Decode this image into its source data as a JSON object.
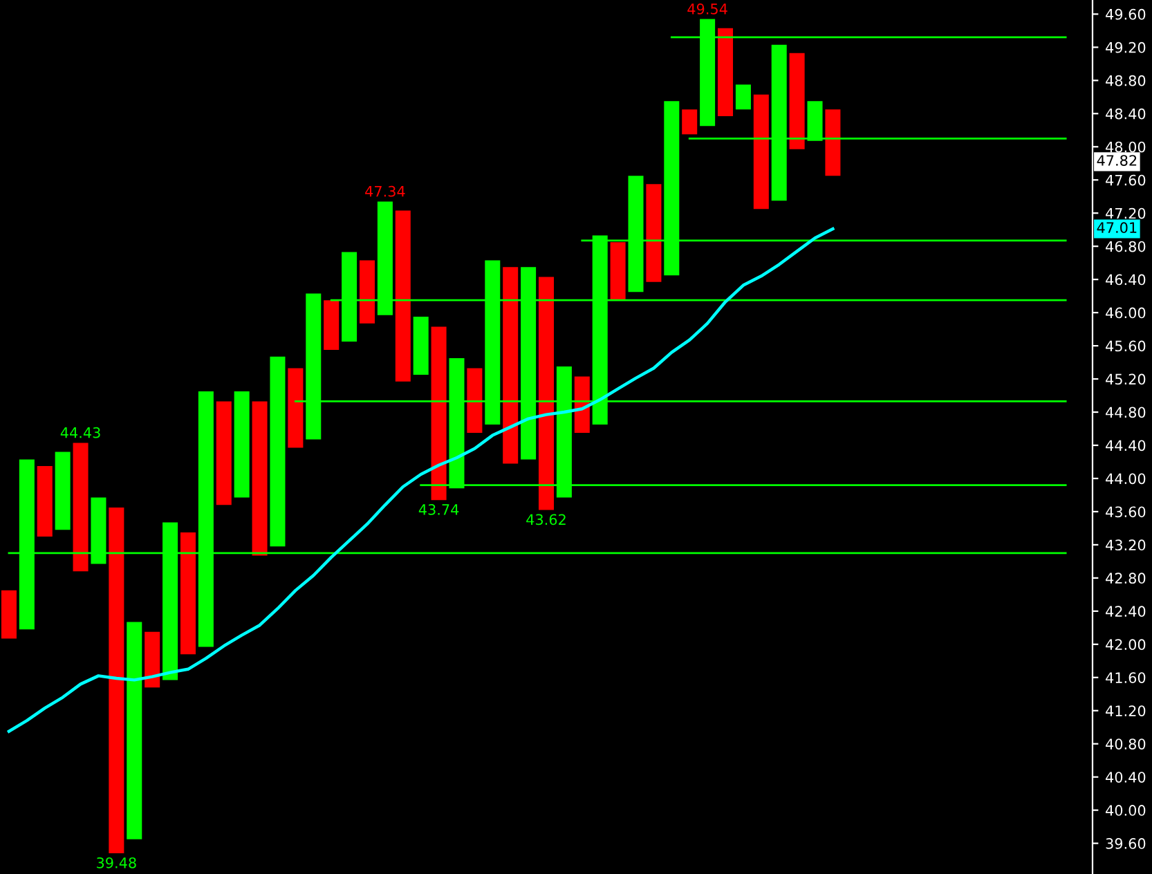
{
  "chart_data": {
    "type": "bar",
    "categories": [
      null,
      null,
      null,
      null,
      null,
      null,
      null,
      null,
      null,
      null,
      null,
      null,
      null,
      null,
      null,
      null,
      null,
      null,
      null,
      null,
      null,
      null,
      null,
      null,
      null,
      null,
      null,
      null,
      null,
      null,
      null,
      null,
      null,
      null,
      null,
      null,
      null,
      null,
      null,
      null,
      null,
      null,
      null,
      null,
      null,
      null,
      null,
      null,
      null,
      null,
      null,
      null,
      null,
      null,
      null,
      null,
      null,
      null,
      null,
      null,
      null
    ],
    "base": [
      42.07,
      42.18,
      43.3,
      43.38,
      42.88,
      42.97,
      39.48,
      39.65,
      41.48,
      41.57,
      41.88,
      41.97,
      43.68,
      43.77,
      43.07,
      43.18,
      44.37,
      44.47,
      45.55,
      45.65,
      45.87,
      45.97,
      45.17,
      45.25,
      43.74,
      43.88,
      44.55,
      44.65,
      44.18,
      44.23,
      43.62,
      43.77,
      44.55,
      44.65,
      46.15,
      46.25,
      46.37,
      46.45,
      48.15,
      48.25,
      48.37,
      48.45,
      47.25,
      47.35,
      47.97,
      48.07,
      47.65,
      null,
      null,
      null,
      null,
      null,
      null,
      null,
      null,
      null,
      null,
      null,
      null,
      null,
      null
    ],
    "values": [
      0.58,
      2.05,
      0.85,
      0.94,
      1.55,
      0.8,
      4.17,
      2.62,
      0.67,
      1.9,
      1.47,
      3.08,
      1.25,
      1.28,
      1.86,
      2.29,
      0.96,
      1.76,
      0.6,
      1.08,
      0.76,
      1.37,
      2.06,
      0.7,
      2.09,
      1.57,
      0.78,
      1.98,
      2.37,
      2.32,
      2.81,
      1.58,
      0.68,
      2.28,
      0.7,
      1.4,
      1.18,
      2.1,
      0.3,
      1.29,
      1.06,
      0.3,
      1.38,
      1.88,
      1.16,
      0.48,
      0.8,
      null,
      null,
      null,
      null,
      null,
      null,
      null,
      null,
      null,
      null,
      null,
      null,
      null,
      null
    ],
    "colors": [
      "#ff0000",
      "#00ff00",
      "#ff0000",
      "#00ff00",
      "#ff0000",
      "#00ff00",
      "#ff0000",
      "#00ff00",
      "#ff0000",
      "#00ff00",
      "#ff0000",
      "#00ff00",
      "#ff0000",
      "#00ff00",
      "#ff0000",
      "#00ff00",
      "#ff0000",
      "#00ff00",
      "#ff0000",
      "#00ff00",
      "#ff0000",
      "#00ff00",
      "#ff0000",
      "#00ff00",
      "#ff0000",
      "#00ff00",
      "#ff0000",
      "#00ff00",
      "#ff0000",
      "#00ff00",
      "#ff0000",
      "#00ff00",
      "#ff0000",
      "#00ff00",
      "#ff0000",
      "#00ff00",
      "#ff0000",
      "#00ff00",
      "#ff0000",
      "#00ff00",
      "#ff0000",
      "#00ff00",
      "#ff0000",
      "#00ff00",
      "#ff0000",
      "#00ff00",
      "#ff0000",
      "#ff0000",
      "#ff0000",
      "#ff0000",
      "#ff0000",
      "#ff0000",
      "#ff0000",
      "#ff0000",
      "#ff0000",
      "#ff0000",
      "#ff0000",
      "#ff0000",
      "#ff0000",
      "#ff0000",
      "#ff0000"
    ],
    "series": [
      {
        "type": "line",
        "color": "#00ffff",
        "values": [
          40.95,
          41.08,
          41.23,
          41.36,
          41.52,
          41.62,
          41.59,
          41.57,
          41.61,
          41.66,
          41.7,
          41.83,
          41.98,
          42.11,
          42.23,
          42.43,
          42.65,
          42.83,
          43.05,
          43.25,
          43.45,
          43.68,
          43.9,
          44.05,
          44.16,
          44.25,
          44.36,
          44.52,
          44.62,
          44.72,
          44.77,
          44.8,
          44.84,
          44.95,
          45.08,
          45.21,
          45.33,
          45.52,
          45.67,
          45.87,
          46.13,
          46.33,
          46.44,
          46.58,
          46.74,
          46.9,
          47.01,
          null,
          null,
          null,
          null,
          null,
          null,
          null,
          null,
          null,
          null,
          null,
          null,
          null,
          null
        ]
      },
      {
        "type": "line",
        "color": "#00ff00",
        "values": [
          null,
          null,
          null,
          null,
          null,
          null,
          null,
          null,
          null,
          null,
          null,
          null,
          null,
          null,
          null,
          null,
          null,
          null,
          null,
          null,
          null,
          null,
          null,
          null,
          null,
          null,
          null,
          null,
          null,
          null,
          null,
          null,
          null,
          null,
          null,
          null,
          null,
          49.32,
          49.32,
          49.32,
          49.32,
          49.32,
          49.32,
          49.32,
          49.32,
          49.32,
          49.32,
          49.32,
          49.32,
          49.32,
          49.32,
          49.32,
          49.32,
          49.32,
          49.32,
          49.32,
          49.32,
          49.32,
          49.32,
          49.32,
          null
        ]
      },
      {
        "type": "line",
        "color": "#00ff00",
        "values": [
          null,
          null,
          null,
          null,
          null,
          null,
          null,
          null,
          null,
          null,
          null,
          null,
          null,
          null,
          null,
          null,
          null,
          null,
          null,
          null,
          null,
          null,
          null,
          null,
          null,
          null,
          null,
          null,
          null,
          null,
          null,
          null,
          null,
          null,
          null,
          null,
          null,
          null,
          48.1,
          48.1,
          48.1,
          48.1,
          48.1,
          48.1,
          48.1,
          48.1,
          48.1,
          48.1,
          48.1,
          48.1,
          48.1,
          48.1,
          48.1,
          48.1,
          48.1,
          48.1,
          48.1,
          48.1,
          48.1,
          48.1,
          null
        ]
      },
      {
        "type": "line",
        "color": "#00ff00",
        "values": [
          null,
          null,
          null,
          null,
          null,
          null,
          null,
          null,
          null,
          null,
          null,
          null,
          null,
          null,
          null,
          null,
          null,
          null,
          null,
          null,
          null,
          null,
          null,
          null,
          null,
          null,
          null,
          null,
          null,
          null,
          null,
          null,
          46.87,
          46.87,
          46.87,
          46.87,
          46.87,
          46.87,
          46.87,
          46.87,
          46.87,
          46.87,
          46.87,
          46.87,
          46.87,
          46.87,
          46.87,
          46.87,
          46.87,
          46.87,
          46.87,
          46.87,
          46.87,
          46.87,
          46.87,
          46.87,
          46.87,
          46.87,
          46.87,
          46.87,
          null
        ]
      },
      {
        "type": "line",
        "color": "#00ff00",
        "values": [
          null,
          null,
          null,
          null,
          null,
          null,
          null,
          null,
          null,
          null,
          null,
          null,
          null,
          null,
          null,
          null,
          null,
          null,
          46.15,
          46.15,
          46.15,
          46.15,
          46.15,
          46.15,
          46.15,
          46.15,
          46.15,
          46.15,
          46.15,
          46.15,
          46.15,
          46.15,
          46.15,
          46.15,
          46.15,
          46.15,
          46.15,
          46.15,
          46.15,
          46.15,
          46.15,
          46.15,
          46.15,
          46.15,
          46.15,
          46.15,
          46.15,
          46.15,
          46.15,
          46.15,
          46.15,
          46.15,
          46.15,
          46.15,
          46.15,
          46.15,
          46.15,
          46.15,
          46.15,
          46.15,
          null
        ]
      },
      {
        "type": "line",
        "color": "#00ff00",
        "values": [
          null,
          null,
          null,
          null,
          null,
          null,
          null,
          null,
          null,
          null,
          null,
          null,
          null,
          null,
          null,
          null,
          44.93,
          44.93,
          44.93,
          44.93,
          44.93,
          44.93,
          44.93,
          44.93,
          44.93,
          44.93,
          44.93,
          44.93,
          44.93,
          44.93,
          44.93,
          44.93,
          44.93,
          44.93,
          44.93,
          44.93,
          44.93,
          44.93,
          44.93,
          44.93,
          44.93,
          44.93,
          44.93,
          44.93,
          44.93,
          44.93,
          44.93,
          44.93,
          44.93,
          44.93,
          44.93,
          44.93,
          44.93,
          44.93,
          44.93,
          44.93,
          44.93,
          44.93,
          44.93,
          44.93,
          null
        ]
      },
      {
        "type": "line",
        "color": "#00ff00",
        "values": [
          null,
          null,
          null,
          null,
          null,
          null,
          null,
          null,
          null,
          null,
          null,
          null,
          null,
          null,
          null,
          null,
          null,
          null,
          null,
          null,
          null,
          null,
          null,
          43.92,
          43.92,
          43.92,
          43.92,
          43.92,
          43.92,
          43.92,
          43.92,
          43.92,
          43.92,
          43.92,
          43.92,
          43.92,
          43.92,
          43.92,
          43.92,
          43.92,
          43.92,
          43.92,
          43.92,
          43.92,
          43.92,
          43.92,
          43.92,
          43.92,
          43.92,
          43.92,
          43.92,
          43.92,
          43.92,
          43.92,
          43.92,
          43.92,
          43.92,
          43.92,
          43.92,
          43.92,
          null
        ]
      },
      {
        "type": "line",
        "color": "#00ff00",
        "values": [
          43.1,
          43.1,
          43.1,
          43.1,
          43.1,
          43.1,
          43.1,
          43.1,
          43.1,
          43.1,
          43.1,
          43.1,
          43.1,
          43.1,
          43.1,
          43.1,
          43.1,
          43.1,
          43.1,
          43.1,
          43.1,
          43.1,
          43.1,
          43.1,
          43.1,
          43.1,
          43.1,
          43.1,
          43.1,
          43.1,
          43.1,
          43.1,
          43.1,
          43.1,
          43.1,
          43.1,
          43.1,
          43.1,
          43.1,
          43.1,
          43.1,
          43.1,
          43.1,
          43.1,
          43.1,
          43.1,
          43.1,
          43.1,
          43.1,
          43.1,
          43.1,
          43.1,
          43.1,
          43.1,
          43.1,
          43.1,
          43.1,
          43.1,
          43.1,
          43.1,
          null
        ]
      }
    ],
    "annotations": [
      "44.43",
      "39.48",
      "47.34",
      "43.74",
      "43.62",
      "49.54",
      "47.82",
      "47.01"
    ],
    "ylim": [
      39.23,
      49.77
    ],
    "yticks": [
      {
        "value": 39.6,
        "label": "39.60"
      },
      {
        "value": 40.0,
        "label": "40.00"
      },
      {
        "value": 40.4,
        "label": "40.40"
      },
      {
        "value": 40.8,
        "label": "40.80"
      },
      {
        "value": 41.2,
        "label": "41.20"
      },
      {
        "value": 41.6,
        "label": "41.60"
      },
      {
        "value": 42.0,
        "label": "42.00"
      },
      {
        "value": 42.4,
        "label": "42.40"
      },
      {
        "value": 42.8,
        "label": "42.80"
      },
      {
        "value": 43.2,
        "label": "43.20"
      },
      {
        "value": 43.6,
        "label": "43.60"
      },
      {
        "value": 44.0,
        "label": "44.00"
      },
      {
        "value": 44.4,
        "label": "44.40"
      },
      {
        "value": 44.8,
        "label": "44.80"
      },
      {
        "value": 45.2,
        "label": "45.20"
      },
      {
        "value": 45.6,
        "label": "45.60"
      },
      {
        "value": 46.0,
        "label": "46.00"
      },
      {
        "value": 46.4,
        "label": "46.40"
      },
      {
        "value": 46.8,
        "label": "46.80"
      },
      {
        "value": 47.2,
        "label": "47.20"
      },
      {
        "value": 47.6,
        "label": "47.60"
      },
      {
        "value": 48.0,
        "label": "48.00"
      },
      {
        "value": 48.4,
        "label": "48.40"
      },
      {
        "value": 48.8,
        "label": "48.80"
      },
      {
        "value": 49.2,
        "label": "49.20"
      },
      {
        "value": 49.6,
        "label": "49.60"
      }
    ],
    "tick_labels": "y",
    "grid": false
  }
}
